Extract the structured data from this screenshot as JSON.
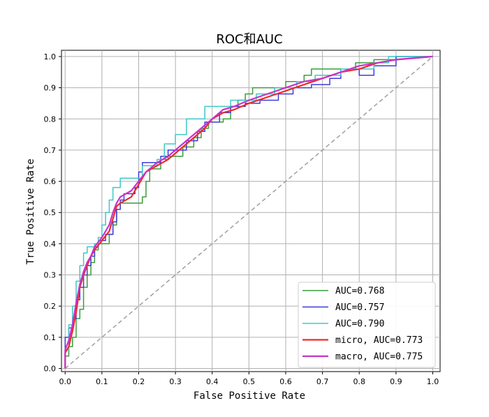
{
  "chart_data": {
    "type": "line",
    "title": "ROC和AUC",
    "xlabel": "False Positive Rate",
    "ylabel": "True Positive Rate",
    "xlim": [
      -0.01,
      1.02
    ],
    "ylim": [
      -0.01,
      1.02
    ],
    "xticks": [
      "0.0",
      "0.1",
      "0.2",
      "0.3",
      "0.4",
      "0.5",
      "0.6",
      "0.7",
      "0.8",
      "0.9",
      "1.0"
    ],
    "yticks": [
      "0.0",
      "0.1",
      "0.2",
      "0.3",
      "0.4",
      "0.5",
      "0.6",
      "0.7",
      "0.8",
      "0.9",
      "1.0"
    ],
    "grid": true,
    "legend_position": "bottom-right",
    "diagonal": {
      "points": [
        [
          0,
          0
        ],
        [
          1,
          1
        ]
      ],
      "color": "#a0a0a0",
      "style": "dashed"
    },
    "series": [
      {
        "name": "AUC=0.768",
        "color": "#3a9e3a",
        "width": 1.5,
        "points": [
          [
            0,
            0
          ],
          [
            0,
            0.04
          ],
          [
            0.01,
            0.04
          ],
          [
            0.01,
            0.07
          ],
          [
            0.02,
            0.07
          ],
          [
            0.02,
            0.1
          ],
          [
            0.03,
            0.1
          ],
          [
            0.03,
            0.16
          ],
          [
            0.04,
            0.16
          ],
          [
            0.04,
            0.19
          ],
          [
            0.05,
            0.19
          ],
          [
            0.05,
            0.26
          ],
          [
            0.06,
            0.26
          ],
          [
            0.06,
            0.3
          ],
          [
            0.07,
            0.3
          ],
          [
            0.07,
            0.34
          ],
          [
            0.08,
            0.34
          ],
          [
            0.08,
            0.38
          ],
          [
            0.09,
            0.38
          ],
          [
            0.09,
            0.4
          ],
          [
            0.12,
            0.4
          ],
          [
            0.12,
            0.43
          ],
          [
            0.13,
            0.43
          ],
          [
            0.13,
            0.46
          ],
          [
            0.14,
            0.46
          ],
          [
            0.14,
            0.51
          ],
          [
            0.15,
            0.51
          ],
          [
            0.15,
            0.53
          ],
          [
            0.21,
            0.53
          ],
          [
            0.21,
            0.55
          ],
          [
            0.22,
            0.55
          ],
          [
            0.22,
            0.6
          ],
          [
            0.23,
            0.6
          ],
          [
            0.23,
            0.64
          ],
          [
            0.26,
            0.64
          ],
          [
            0.26,
            0.67
          ],
          [
            0.28,
            0.67
          ],
          [
            0.28,
            0.68
          ],
          [
            0.32,
            0.68
          ],
          [
            0.32,
            0.71
          ],
          [
            0.35,
            0.71
          ],
          [
            0.35,
            0.74
          ],
          [
            0.37,
            0.74
          ],
          [
            0.37,
            0.77
          ],
          [
            0.39,
            0.77
          ],
          [
            0.39,
            0.79
          ],
          [
            0.43,
            0.79
          ],
          [
            0.43,
            0.8
          ],
          [
            0.45,
            0.8
          ],
          [
            0.45,
            0.84
          ],
          [
            0.47,
            0.84
          ],
          [
            0.47,
            0.86
          ],
          [
            0.49,
            0.86
          ],
          [
            0.49,
            0.88
          ],
          [
            0.51,
            0.88
          ],
          [
            0.51,
            0.9
          ],
          [
            0.6,
            0.9
          ],
          [
            0.6,
            0.92
          ],
          [
            0.65,
            0.92
          ],
          [
            0.65,
            0.94
          ],
          [
            0.67,
            0.94
          ],
          [
            0.67,
            0.96
          ],
          [
            0.79,
            0.96
          ],
          [
            0.79,
            0.98
          ],
          [
            0.84,
            0.98
          ],
          [
            0.84,
            0.99
          ],
          [
            0.9,
            0.99
          ],
          [
            0.9,
            1
          ],
          [
            1,
            1
          ]
        ]
      },
      {
        "name": "AUC=0.757",
        "color": "#3c3cdc",
        "width": 1.5,
        "points": [
          [
            0,
            0
          ],
          [
            0,
            0.1
          ],
          [
            0.01,
            0.1
          ],
          [
            0.01,
            0.13
          ],
          [
            0.02,
            0.13
          ],
          [
            0.02,
            0.16
          ],
          [
            0.03,
            0.16
          ],
          [
            0.03,
            0.22
          ],
          [
            0.04,
            0.22
          ],
          [
            0.04,
            0.26
          ],
          [
            0.05,
            0.26
          ],
          [
            0.05,
            0.3
          ],
          [
            0.06,
            0.3
          ],
          [
            0.06,
            0.33
          ],
          [
            0.07,
            0.33
          ],
          [
            0.07,
            0.36
          ],
          [
            0.08,
            0.36
          ],
          [
            0.08,
            0.39
          ],
          [
            0.09,
            0.39
          ],
          [
            0.09,
            0.41
          ],
          [
            0.11,
            0.41
          ],
          [
            0.11,
            0.43
          ],
          [
            0.13,
            0.43
          ],
          [
            0.13,
            0.47
          ],
          [
            0.14,
            0.47
          ],
          [
            0.14,
            0.51
          ],
          [
            0.15,
            0.51
          ],
          [
            0.15,
            0.54
          ],
          [
            0.16,
            0.54
          ],
          [
            0.16,
            0.56
          ],
          [
            0.19,
            0.56
          ],
          [
            0.19,
            0.58
          ],
          [
            0.2,
            0.58
          ],
          [
            0.2,
            0.63
          ],
          [
            0.21,
            0.63
          ],
          [
            0.21,
            0.66
          ],
          [
            0.26,
            0.66
          ],
          [
            0.26,
            0.68
          ],
          [
            0.28,
            0.68
          ],
          [
            0.28,
            0.7
          ],
          [
            0.33,
            0.7
          ],
          [
            0.33,
            0.73
          ],
          [
            0.36,
            0.73
          ],
          [
            0.36,
            0.76
          ],
          [
            0.38,
            0.76
          ],
          [
            0.38,
            0.79
          ],
          [
            0.42,
            0.79
          ],
          [
            0.42,
            0.82
          ],
          [
            0.45,
            0.82
          ],
          [
            0.45,
            0.84
          ],
          [
            0.49,
            0.84
          ],
          [
            0.49,
            0.85
          ],
          [
            0.53,
            0.85
          ],
          [
            0.53,
            0.86
          ],
          [
            0.58,
            0.86
          ],
          [
            0.58,
            0.88
          ],
          [
            0.62,
            0.88
          ],
          [
            0.62,
            0.9
          ],
          [
            0.67,
            0.9
          ],
          [
            0.67,
            0.91
          ],
          [
            0.72,
            0.91
          ],
          [
            0.72,
            0.93
          ],
          [
            0.75,
            0.93
          ],
          [
            0.75,
            0.96
          ],
          [
            0.8,
            0.96
          ],
          [
            0.8,
            0.94
          ],
          [
            0.84,
            0.94
          ],
          [
            0.84,
            0.97
          ],
          [
            0.9,
            0.97
          ],
          [
            0.9,
            1
          ],
          [
            1,
            1
          ]
        ]
      },
      {
        "name": "AUC=0.790",
        "color": "#3ec8c8",
        "width": 1.5,
        "points": [
          [
            0,
            0
          ],
          [
            0,
            0.06
          ],
          [
            0.01,
            0.06
          ],
          [
            0.01,
            0.14
          ],
          [
            0.02,
            0.14
          ],
          [
            0.02,
            0.2
          ],
          [
            0.03,
            0.2
          ],
          [
            0.03,
            0.28
          ],
          [
            0.04,
            0.28
          ],
          [
            0.04,
            0.33
          ],
          [
            0.05,
            0.33
          ],
          [
            0.05,
            0.37
          ],
          [
            0.06,
            0.37
          ],
          [
            0.06,
            0.39
          ],
          [
            0.08,
            0.39
          ],
          [
            0.08,
            0.4
          ],
          [
            0.09,
            0.4
          ],
          [
            0.09,
            0.42
          ],
          [
            0.1,
            0.42
          ],
          [
            0.1,
            0.46
          ],
          [
            0.11,
            0.46
          ],
          [
            0.11,
            0.5
          ],
          [
            0.12,
            0.5
          ],
          [
            0.12,
            0.54
          ],
          [
            0.13,
            0.54
          ],
          [
            0.13,
            0.58
          ],
          [
            0.15,
            0.58
          ],
          [
            0.15,
            0.61
          ],
          [
            0.21,
            0.61
          ],
          [
            0.21,
            0.65
          ],
          [
            0.25,
            0.65
          ],
          [
            0.25,
            0.67
          ],
          [
            0.27,
            0.67
          ],
          [
            0.27,
            0.72
          ],
          [
            0.3,
            0.72
          ],
          [
            0.3,
            0.75
          ],
          [
            0.33,
            0.75
          ],
          [
            0.33,
            0.8
          ],
          [
            0.38,
            0.8
          ],
          [
            0.38,
            0.84
          ],
          [
            0.45,
            0.84
          ],
          [
            0.45,
            0.86
          ],
          [
            0.52,
            0.86
          ],
          [
            0.52,
            0.88
          ],
          [
            0.57,
            0.88
          ],
          [
            0.57,
            0.9
          ],
          [
            0.63,
            0.9
          ],
          [
            0.63,
            0.92
          ],
          [
            0.68,
            0.92
          ],
          [
            0.68,
            0.94
          ],
          [
            0.75,
            0.94
          ],
          [
            0.75,
            0.96
          ],
          [
            0.84,
            0.96
          ],
          [
            0.84,
            0.98
          ],
          [
            0.88,
            0.98
          ],
          [
            0.88,
            1
          ],
          [
            1,
            1
          ]
        ]
      },
      {
        "name": "micro, AUC=0.773",
        "color": "#ee2a2a",
        "width": 2.2,
        "points": [
          [
            0,
            0
          ],
          [
            0,
            0.05
          ],
          [
            0.01,
            0.07
          ],
          [
            0.02,
            0.12
          ],
          [
            0.03,
            0.18
          ],
          [
            0.04,
            0.26
          ],
          [
            0.05,
            0.3
          ],
          [
            0.06,
            0.33
          ],
          [
            0.07,
            0.36
          ],
          [
            0.08,
            0.38
          ],
          [
            0.1,
            0.41
          ],
          [
            0.12,
            0.44
          ],
          [
            0.13,
            0.48
          ],
          [
            0.14,
            0.52
          ],
          [
            0.15,
            0.53
          ],
          [
            0.18,
            0.55
          ],
          [
            0.2,
            0.59
          ],
          [
            0.22,
            0.63
          ],
          [
            0.25,
            0.65
          ],
          [
            0.28,
            0.67
          ],
          [
            0.3,
            0.69
          ],
          [
            0.33,
            0.72
          ],
          [
            0.36,
            0.75
          ],
          [
            0.38,
            0.77
          ],
          [
            0.4,
            0.8
          ],
          [
            0.43,
            0.82
          ],
          [
            0.46,
            0.83
          ],
          [
            0.5,
            0.85
          ],
          [
            0.55,
            0.87
          ],
          [
            0.6,
            0.89
          ],
          [
            0.65,
            0.91
          ],
          [
            0.7,
            0.93
          ],
          [
            0.75,
            0.95
          ],
          [
            0.8,
            0.96
          ],
          [
            0.85,
            0.98
          ],
          [
            0.9,
            0.99
          ],
          [
            1,
            1
          ]
        ]
      },
      {
        "name": "macro, AUC=0.775",
        "color": "#c834c8",
        "width": 2.2,
        "points": [
          [
            0,
            0
          ],
          [
            0,
            0.06
          ],
          [
            0.01,
            0.09
          ],
          [
            0.02,
            0.14
          ],
          [
            0.03,
            0.21
          ],
          [
            0.04,
            0.27
          ],
          [
            0.05,
            0.31
          ],
          [
            0.06,
            0.34
          ],
          [
            0.07,
            0.36
          ],
          [
            0.08,
            0.39
          ],
          [
            0.1,
            0.42
          ],
          [
            0.12,
            0.46
          ],
          [
            0.13,
            0.5
          ],
          [
            0.14,
            0.53
          ],
          [
            0.15,
            0.55
          ],
          [
            0.18,
            0.57
          ],
          [
            0.2,
            0.6
          ],
          [
            0.22,
            0.63
          ],
          [
            0.25,
            0.66
          ],
          [
            0.28,
            0.68
          ],
          [
            0.3,
            0.7
          ],
          [
            0.33,
            0.73
          ],
          [
            0.36,
            0.76
          ],
          [
            0.38,
            0.78
          ],
          [
            0.4,
            0.8
          ],
          [
            0.43,
            0.83
          ],
          [
            0.46,
            0.84
          ],
          [
            0.5,
            0.86
          ],
          [
            0.55,
            0.88
          ],
          [
            0.6,
            0.9
          ],
          [
            0.65,
            0.92
          ],
          [
            0.7,
            0.93
          ],
          [
            0.75,
            0.95
          ],
          [
            0.8,
            0.97
          ],
          [
            0.85,
            0.98
          ],
          [
            0.9,
            0.99
          ],
          [
            1,
            1
          ]
        ]
      }
    ]
  }
}
